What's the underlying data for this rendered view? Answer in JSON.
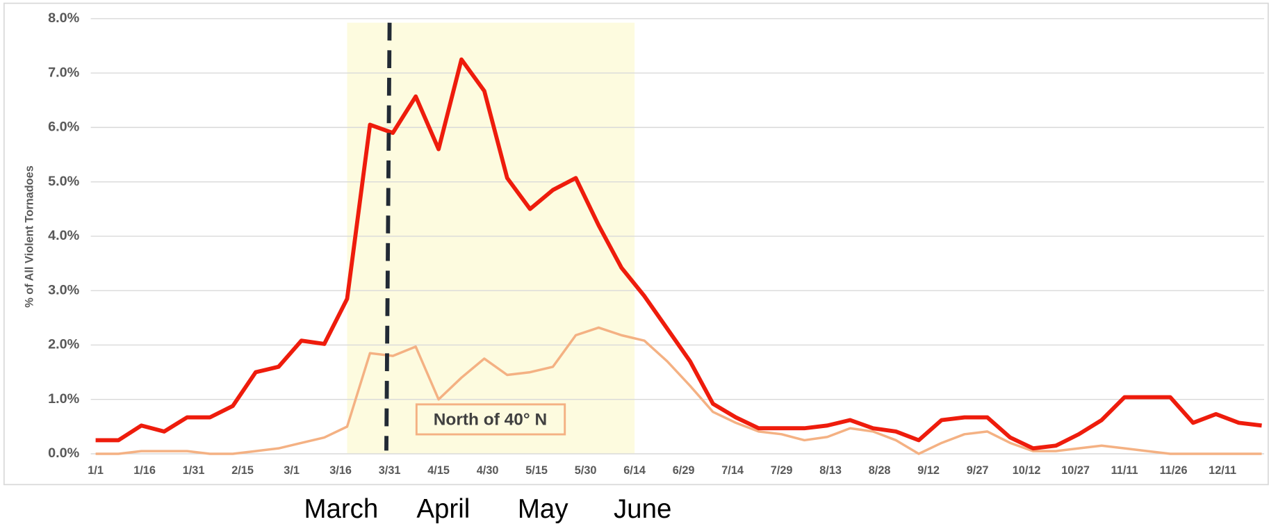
{
  "chart_data": {
    "type": "line",
    "y_label": "% of All Violent Tornadoes",
    "annotation": "North of 40° N",
    "month_labels": [
      "March",
      "April",
      "May",
      "June"
    ],
    "highlight_x": [
      78,
      166
    ],
    "dashed_x": 91,
    "xlim": [
      1,
      358
    ],
    "ylim": [
      0,
      8
    ],
    "grid": true,
    "xticks": [
      {
        "value": 1,
        "label": "1/1"
      },
      {
        "value": 16,
        "label": "1/16"
      },
      {
        "value": 31,
        "label": "1/31"
      },
      {
        "value": 46,
        "label": "2/15"
      },
      {
        "value": 61,
        "label": "3/1"
      },
      {
        "value": 76,
        "label": "3/16"
      },
      {
        "value": 91,
        "label": "3/31"
      },
      {
        "value": 106,
        "label": "4/15"
      },
      {
        "value": 121,
        "label": "4/30"
      },
      {
        "value": 136,
        "label": "5/15"
      },
      {
        "value": 151,
        "label": "5/30"
      },
      {
        "value": 166,
        "label": "6/14"
      },
      {
        "value": 181,
        "label": "6/29"
      },
      {
        "value": 196,
        "label": "7/14"
      },
      {
        "value": 211,
        "label": "7/29"
      },
      {
        "value": 226,
        "label": "8/13"
      },
      {
        "value": 241,
        "label": "8/28"
      },
      {
        "value": 256,
        "label": "9/12"
      },
      {
        "value": 271,
        "label": "9/27"
      },
      {
        "value": 286,
        "label": "10/12"
      },
      {
        "value": 301,
        "label": "10/27"
      },
      {
        "value": 316,
        "label": "11/11"
      },
      {
        "value": 331,
        "label": "11/26"
      },
      {
        "value": 346,
        "label": "12/11"
      }
    ],
    "yticks": [
      {
        "value": 0,
        "label": "0.0%"
      },
      {
        "value": 1,
        "label": "1.0%"
      },
      {
        "value": 2,
        "label": "2.0%"
      },
      {
        "value": 3,
        "label": "3.0%"
      },
      {
        "value": 4,
        "label": "4.0%"
      },
      {
        "value": 5,
        "label": "5.0%"
      },
      {
        "value": 6,
        "label": "6.0%"
      },
      {
        "value": 7,
        "label": "7.0%"
      },
      {
        "value": 8,
        "label": "8.0%"
      }
    ],
    "x": [
      1,
      8,
      15,
      22,
      29,
      36,
      43,
      50,
      57,
      64,
      71,
      78,
      85,
      92,
      99,
      106,
      113,
      120,
      127,
      134,
      141,
      148,
      155,
      162,
      169,
      176,
      183,
      190,
      197,
      204,
      211,
      218,
      225,
      232,
      239,
      246,
      253,
      260,
      267,
      274,
      281,
      288,
      295,
      302,
      309,
      316,
      323,
      330,
      337,
      344,
      351,
      358
    ],
    "series": [
      {
        "color": "#ee1c0c",
        "values": [
          0.25,
          0.25,
          0.52,
          0.41,
          0.67,
          0.67,
          0.88,
          1.5,
          1.6,
          2.08,
          2.02,
          2.85,
          6.05,
          5.9,
          6.57,
          5.6,
          7.25,
          6.67,
          5.07,
          4.5,
          4.85,
          5.07,
          4.2,
          3.42,
          2.9,
          2.3,
          1.7,
          0.92,
          0.67,
          0.47,
          0.47,
          0.47,
          0.52,
          0.62,
          0.47,
          0.41,
          0.25,
          0.62,
          0.67,
          0.67,
          0.3,
          0.1,
          0.15,
          0.36,
          0.62,
          1.04,
          1.04,
          1.04,
          0.57,
          0.73,
          0.57,
          0.52
        ]
      },
      {
        "color": "#f4b183",
        "values": [
          0,
          0,
          0.05,
          0.05,
          0.05,
          0,
          0,
          0.05,
          0.1,
          0.2,
          0.3,
          0.5,
          1.85,
          1.8,
          1.97,
          1.0,
          1.4,
          1.75,
          1.45,
          1.5,
          1.6,
          2.18,
          2.32,
          2.18,
          2.08,
          1.7,
          1.25,
          0.77,
          0.57,
          0.41,
          0.36,
          0.25,
          0.31,
          0.47,
          0.41,
          0.25,
          0,
          0.2,
          0.36,
          0.41,
          0.2,
          0.05,
          0.05,
          0.1,
          0.15,
          0.1,
          0.05,
          0,
          0,
          0,
          0,
          0
        ]
      }
    ]
  }
}
